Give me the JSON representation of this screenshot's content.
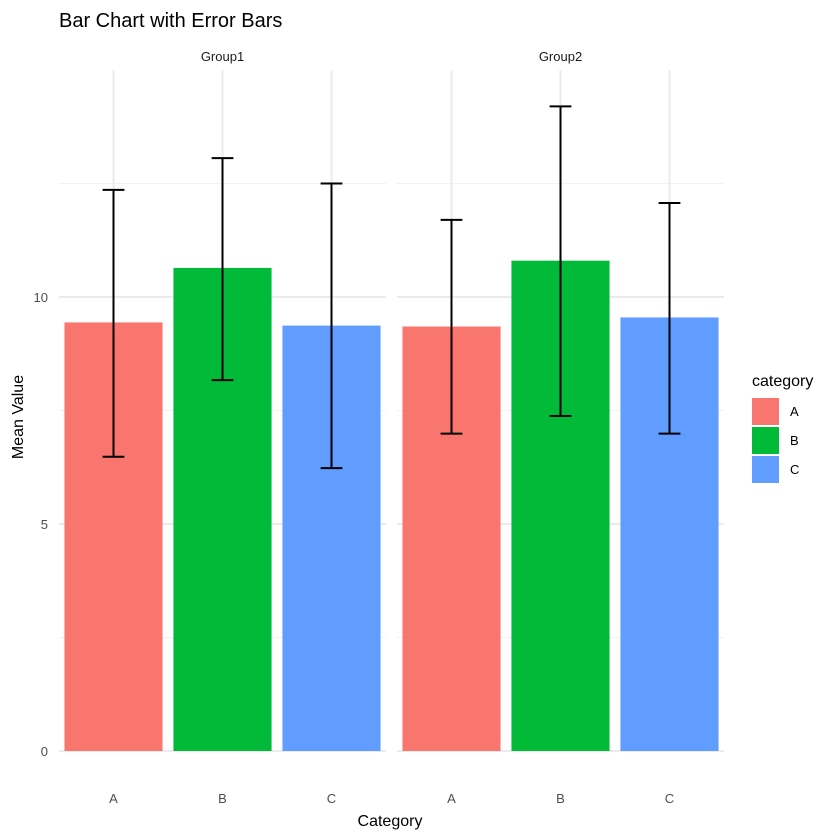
{
  "chart_data": {
    "type": "bar",
    "title": "Bar Chart with Error Bars",
    "xlabel": "Category",
    "ylabel": "Mean Value",
    "ylim": [
      0,
      15
    ],
    "yticks": [
      0,
      5,
      10
    ],
    "categories": [
      "A",
      "B",
      "C"
    ],
    "panels": [
      {
        "name": "Group1",
        "values": [
          9.44,
          10.64,
          9.37
        ],
        "error_low": [
          6.48,
          8.17,
          6.23
        ],
        "error_high": [
          12.36,
          13.06,
          12.5
        ]
      },
      {
        "name": "Group2",
        "values": [
          9.35,
          10.8,
          9.55
        ],
        "error_low": [
          6.99,
          7.38,
          6.99
        ],
        "error_high": [
          11.7,
          14.2,
          12.07
        ]
      }
    ],
    "legend": {
      "title": "category",
      "position": "right",
      "entries": [
        {
          "label": "A",
          "color": "#F8766D"
        },
        {
          "label": "B",
          "color": "#00BA38"
        },
        {
          "label": "C",
          "color": "#619CFF"
        }
      ]
    },
    "grid": true
  }
}
